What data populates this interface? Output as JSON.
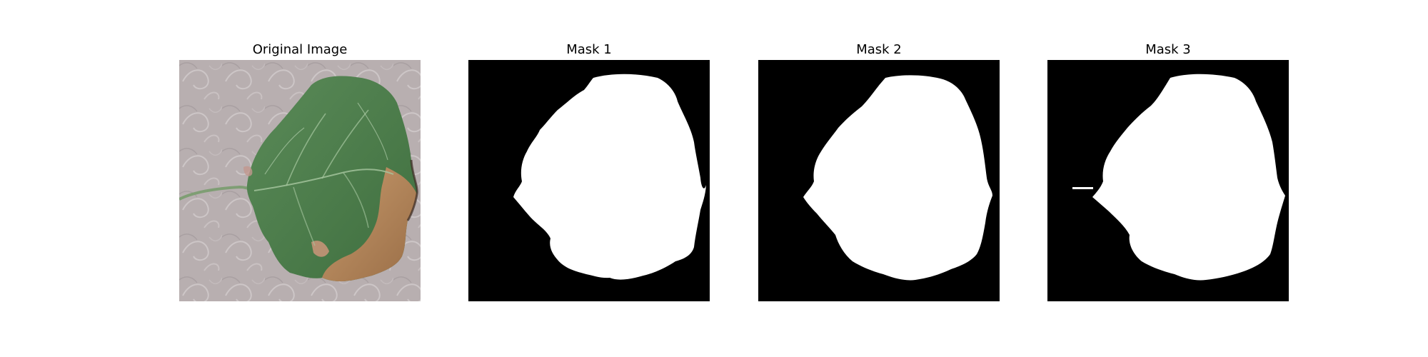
{
  "figure": {
    "panels": [
      {
        "title": "Original Image",
        "kind": "photo"
      },
      {
        "title": "Mask 1",
        "kind": "mask"
      },
      {
        "title": "Mask 2",
        "kind": "mask"
      },
      {
        "title": "Mask 3",
        "kind": "mask"
      }
    ],
    "colors": {
      "figure_background": "#ffffff",
      "mask_background": "#000000",
      "mask_foreground": "#ffffff",
      "leaf_green": "#4f7f4e",
      "leaf_brown": "#b58a5d",
      "texture_background": "#b8afb0"
    }
  }
}
